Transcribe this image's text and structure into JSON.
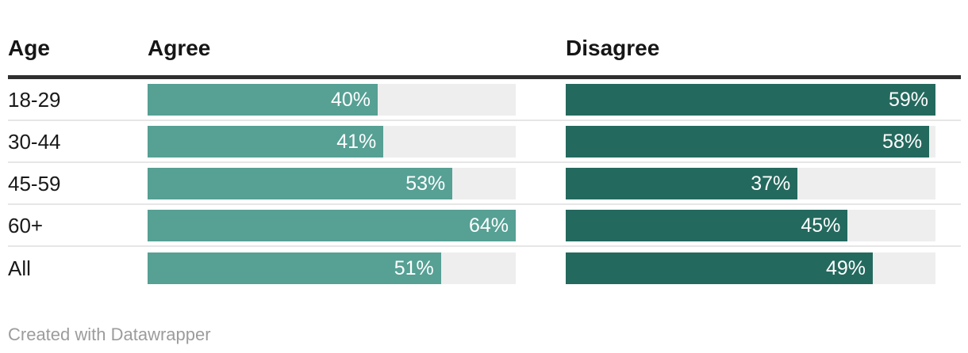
{
  "header": {
    "age_label": "Age",
    "agree_label": "Agree",
    "disagree_label": "Disagree"
  },
  "footer": {
    "attribution": "Created with Datawrapper"
  },
  "colors": {
    "agree_bar": "#56a094",
    "disagree_bar": "#24695e",
    "bar_track": "#eeeeee",
    "header_rule": "#2f2f2f",
    "row_separator": "#e6e6e6",
    "footer_text": "#9c9c9c"
  },
  "chart_data": {
    "type": "bar",
    "title": "",
    "categories": [
      "18-29",
      "30-44",
      "45-59",
      "60+",
      "All"
    ],
    "series": [
      {
        "name": "Agree",
        "values": [
          40,
          41,
          53,
          64,
          51
        ]
      },
      {
        "name": "Disagree",
        "values": [
          59,
          58,
          37,
          45,
          49
        ]
      }
    ],
    "value_suffix": "%",
    "value_labels": "inside-end, white",
    "bar_scaling": "each column scaled to its max value (64% Agree, 59% Disagree fill full track)",
    "layout": "table with row labels left, two bar columns, grid off, no axes",
    "attribution": "Created with Datawrapper"
  }
}
